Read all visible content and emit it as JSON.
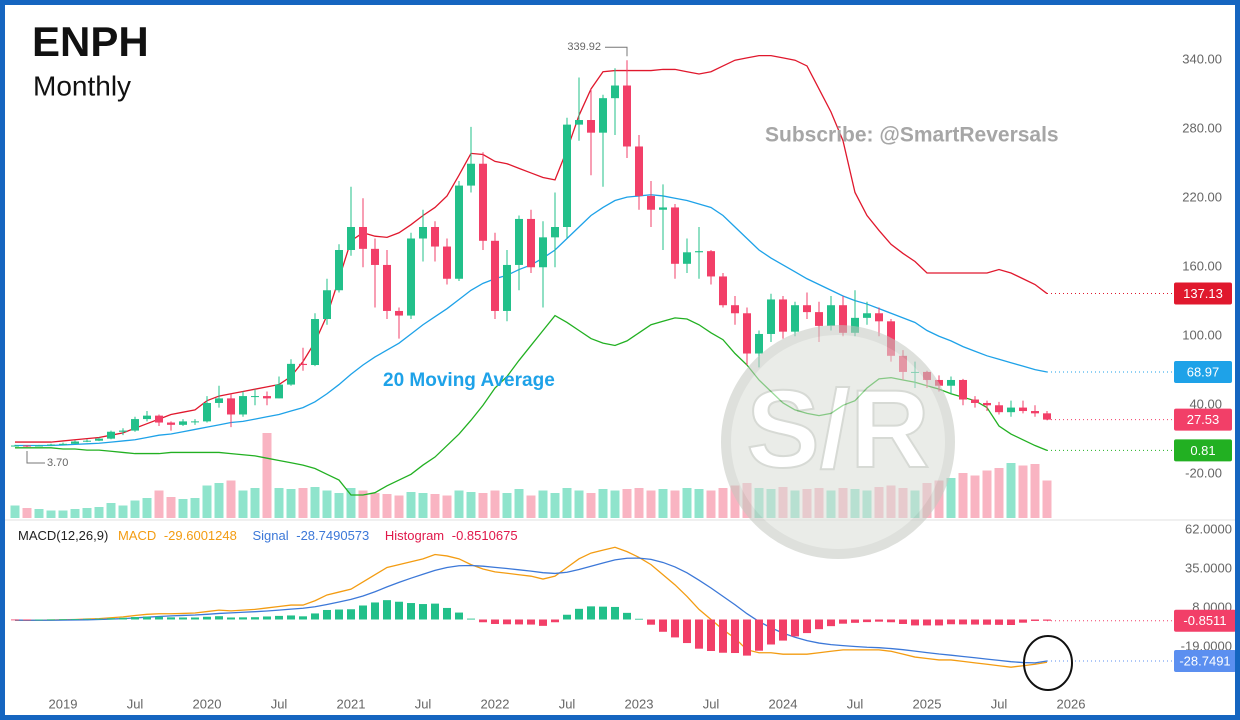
{
  "chart_data": [
    {
      "type": "candlestick",
      "title": "ENPH",
      "subtitle": "Monthly",
      "annotations": [
        "Subscribe: @SmartReversals",
        "20 Moving Average"
      ],
      "watermark": "S/R",
      "low_label": "3.70",
      "x": [
        "2018-09",
        "2018-10",
        "2018-11",
        "2018-12",
        "2019-01",
        "2019-02",
        "2019-03",
        "2019-04",
        "2019-05",
        "2019-06",
        "2019-07",
        "2019-08",
        "2019-09",
        "2019-10",
        "2019-11",
        "2019-12",
        "2020-01",
        "2020-02",
        "2020-03",
        "2020-04",
        "2020-05",
        "2020-06",
        "2020-07",
        "2020-08",
        "2020-09",
        "2020-10",
        "2020-11",
        "2020-12",
        "2021-01",
        "2021-02",
        "2021-03",
        "2021-04",
        "2021-05",
        "2021-06",
        "2021-07",
        "2021-08",
        "2021-09",
        "2021-10",
        "2021-11",
        "2021-12",
        "2022-01",
        "2022-02",
        "2022-03",
        "2022-04",
        "2022-05",
        "2022-06",
        "2022-07",
        "2022-08",
        "2022-09",
        "2022-10",
        "2022-11",
        "2022-12",
        "2023-01",
        "2023-02",
        "2023-03",
        "2023-04",
        "2023-05",
        "2023-06",
        "2023-07",
        "2023-08",
        "2023-09",
        "2023-10",
        "2023-11",
        "2023-12",
        "2024-01",
        "2024-02",
        "2024-03",
        "2024-04",
        "2024-05",
        "2024-06",
        "2024-07",
        "2024-08",
        "2024-09",
        "2024-10",
        "2024-11",
        "2024-12",
        "2025-01",
        "2025-02",
        "2025-03",
        "2025-04",
        "2025-05",
        "2025-06",
        "2025-07",
        "2025-08",
        "2025-09",
        "2025-10",
        "2025-11"
      ],
      "open": [
        4.8,
        5,
        4.5,
        5,
        5.9,
        6.5,
        8.5,
        9.2,
        11,
        17,
        18,
        28,
        31,
        25,
        23,
        26,
        26,
        42,
        46,
        32,
        48,
        48,
        46,
        58,
        76,
        75,
        115,
        140,
        175,
        195,
        176,
        162,
        122,
        118,
        185,
        195,
        178,
        150,
        231,
        250,
        183,
        122,
        162,
        202,
        160,
        186,
        195,
        284,
        288,
        277,
        307,
        318,
        265,
        222,
        210,
        212,
        163,
        173,
        174,
        152,
        127,
        120,
        85,
        102,
        132,
        104,
        127,
        121,
        109,
        127,
        103,
        116,
        120,
        113,
        83,
        69,
        69,
        62,
        57,
        62,
        45,
        42,
        40,
        34,
        38,
        35,
        33
      ],
      "high": [
        5.6,
        5.4,
        5.6,
        6.5,
        7.5,
        9.5,
        10.5,
        12,
        18,
        20,
        30,
        35,
        32,
        26,
        28,
        28,
        48,
        57,
        50,
        52,
        54,
        52,
        65,
        80,
        90,
        120,
        150,
        180,
        230,
        220,
        185,
        175,
        125,
        190,
        210,
        200,
        185,
        235,
        282,
        260,
        190,
        175,
        205,
        210,
        200,
        225,
        290,
        325,
        315,
        310,
        333,
        339.92,
        275,
        235,
        232,
        215,
        185,
        195,
        175,
        155,
        135,
        125,
        105,
        137,
        135,
        130,
        138,
        130,
        135,
        135,
        140,
        130,
        125,
        115,
        88,
        78,
        70,
        66,
        65,
        63,
        48,
        44,
        43,
        44,
        44,
        40,
        35
      ],
      "low": [
        4.2,
        3.7,
        4.3,
        4.8,
        5.5,
        6.2,
        8,
        8.8,
        10.5,
        14,
        17,
        26,
        22,
        18,
        22,
        23,
        25,
        38,
        21,
        30,
        40,
        40,
        46,
        57,
        70,
        74,
        110,
        138,
        170,
        160,
        125,
        115,
        98,
        115,
        165,
        165,
        145,
        148,
        225,
        175,
        115,
        113,
        140,
        155,
        125,
        160,
        185,
        270,
        240,
        230,
        275,
        255,
        210,
        195,
        175,
        150,
        155,
        150,
        145,
        125,
        110,
        75,
        73,
        95,
        98,
        100,
        115,
        95,
        105,
        100,
        100,
        110,
        100,
        78,
        62,
        55,
        55,
        52,
        50,
        40,
        38,
        35,
        32,
        30,
        33,
        30,
        27
      ],
      "close": [
        5,
        4.5,
        5,
        5.9,
        6.5,
        8.5,
        9.2,
        11,
        17,
        18,
        28,
        31,
        25,
        23,
        26,
        26,
        42,
        46,
        32,
        48,
        48,
        46,
        58,
        76,
        75,
        115,
        140,
        175,
        195,
        176,
        162,
        122,
        118,
        185,
        195,
        178,
        150,
        231,
        250,
        183,
        122,
        162,
        202,
        160,
        186,
        195,
        284,
        288,
        277,
        307,
        318,
        265,
        222,
        210,
        212,
        163,
        173,
        174,
        152,
        127,
        120,
        85,
        102,
        132,
        104,
        127,
        121,
        109,
        127,
        103,
        116,
        120,
        113,
        83,
        69,
        69,
        62,
        57,
        62,
        45,
        42,
        40,
        34,
        38,
        35,
        33,
        27.53
      ],
      "up_color": "#22c08a",
      "down_color": "#f23f68",
      "close_badge_color": "#f23f68",
      "volume": {
        "up_color": "#8fe4cc",
        "down_color": "#f9b4c2",
        "values": [
          25,
          20,
          18,
          15,
          15,
          18,
          20,
          22,
          30,
          25,
          35,
          40,
          55,
          42,
          38,
          40,
          65,
          70,
          75,
          55,
          60,
          170,
          60,
          58,
          60,
          62,
          55,
          50,
          60,
          55,
          50,
          48,
          45,
          52,
          50,
          48,
          45,
          55,
          52,
          50,
          55,
          50,
          58,
          45,
          55,
          50,
          60,
          55,
          50,
          58,
          55,
          58,
          60,
          55,
          58,
          55,
          60,
          58,
          55,
          60,
          65,
          70,
          60,
          58,
          62,
          55,
          58,
          60,
          55,
          60,
          58,
          55,
          62,
          65,
          60,
          55,
          70,
          75,
          80,
          90,
          85,
          95,
          100,
          110,
          105,
          108,
          75
        ]
      },
      "bands": [
        {
          "color": "#e0182d",
          "values": [
            8,
            8,
            8,
            8,
            9,
            10,
            11,
            12,
            14,
            16,
            20,
            24,
            28,
            32,
            34,
            36,
            44,
            48,
            50,
            52,
            54,
            56,
            58,
            65,
            78,
            95,
            118,
            150,
            183,
            190,
            187,
            186,
            190,
            197,
            205,
            212,
            222,
            240,
            259,
            258,
            252,
            250,
            246,
            242,
            238,
            236,
            262,
            292,
            315,
            330,
            331,
            331,
            331,
            331,
            332,
            332,
            330,
            328,
            330,
            335,
            340,
            342,
            344,
            344,
            342,
            340,
            335,
            315,
            295,
            270,
            225,
            205,
            192,
            180,
            172,
            165,
            155,
            155,
            155,
            155,
            155,
            155,
            158,
            155,
            150,
            145,
            137.13
          ]
        },
        {
          "color": "#1ea2e8",
          "values": [
            5,
            5,
            5,
            5,
            5.5,
            6,
            6.5,
            7,
            8,
            9,
            10,
            12,
            14,
            15,
            17,
            19,
            21,
            23,
            25,
            26,
            28,
            30,
            32,
            35,
            38,
            43,
            50,
            58,
            67,
            75,
            82,
            88,
            94,
            102,
            110,
            117,
            124,
            132,
            140,
            146,
            150,
            153,
            158,
            162,
            168,
            175,
            185,
            195,
            205,
            212,
            218,
            221,
            222,
            223,
            222,
            220,
            218,
            215,
            212,
            205,
            195,
            185,
            175,
            168,
            162,
            156,
            150,
            145,
            140,
            135,
            131,
            128,
            124,
            120,
            116,
            112,
            105,
            100,
            96,
            91,
            87,
            83,
            80,
            77,
            74,
            71,
            68.97
          ]
        },
        {
          "color": "#22b022",
          "values": [
            3,
            3,
            3,
            3,
            2,
            2,
            1,
            1,
            0,
            -1,
            -2,
            -2,
            -2,
            -1,
            -1,
            -1,
            -1,
            -1,
            -2,
            -3,
            -4,
            -6,
            -8,
            -10,
            -12,
            -15,
            -20,
            -25,
            -38,
            -38,
            -36,
            -30,
            -25,
            -20,
            -12,
            -5,
            5,
            15,
            27,
            40,
            55,
            65,
            79,
            92,
            105,
            118,
            112,
            105,
            98,
            94,
            92,
            96,
            103,
            110,
            113,
            116,
            115,
            110,
            103,
            97,
            85,
            75,
            62,
            52,
            42,
            36,
            33,
            31,
            33,
            40,
            44,
            55,
            63,
            64,
            62,
            60,
            57,
            54,
            50,
            47,
            44,
            38,
            22,
            15,
            10,
            5,
            0.81
          ]
        }
      ],
      "ylim": [
        -58,
        388
      ],
      "yticks": [
        {
          "value": 340,
          "label": "340.00"
        },
        {
          "value": 280,
          "label": "280.00"
        },
        {
          "value": 220,
          "label": "220.00"
        },
        {
          "value": 160,
          "label": "160.00"
        },
        {
          "value": 100,
          "label": "100.00"
        },
        {
          "value": 40,
          "label": "40.00"
        },
        {
          "value": -20,
          "label": "-20.00"
        }
      ],
      "xticks": [
        {
          "value": "2019-01",
          "label": "2019"
        },
        {
          "value": "2019-07",
          "label": "Jul"
        },
        {
          "value": "2020-01",
          "label": "2020"
        },
        {
          "value": "2020-07",
          "label": "Jul"
        },
        {
          "value": "2021-01",
          "label": "2021"
        },
        {
          "value": "2021-07",
          "label": "Jul"
        },
        {
          "value": "2022-01",
          "label": "2022"
        },
        {
          "value": "2022-07",
          "label": "Jul"
        },
        {
          "value": "2023-01",
          "label": "2023"
        },
        {
          "value": "2023-07",
          "label": "Jul"
        },
        {
          "value": "2024-01",
          "label": "2024"
        },
        {
          "value": "2024-07",
          "label": "Jul"
        },
        {
          "value": "2025-01",
          "label": "2025"
        },
        {
          "value": "2025-07",
          "label": "Jul"
        },
        {
          "value": "2026-01",
          "label": "2026"
        }
      ],
      "grid": false
    },
    {
      "type": "macd",
      "title": "MACD(12,26,9)",
      "series": [
        {
          "name": "MACD",
          "color": "#f39c12",
          "values": [
            -0.5,
            -0.6,
            -0.5,
            -0.4,
            -0.2,
            0,
            0.3,
            0.6,
            1.2,
            1.8,
            2.8,
            3.6,
            4,
            4,
            4.2,
            4.5,
            5.5,
            6.5,
            6,
            6.5,
            7,
            8,
            9,
            10,
            10,
            13,
            17,
            19,
            21,
            26,
            31,
            36,
            38,
            40,
            42,
            45,
            44,
            42,
            38,
            35,
            33,
            32,
            31,
            30,
            28,
            30,
            36,
            42,
            46,
            48,
            50,
            47,
            43,
            38,
            31,
            24,
            16,
            7,
            0,
            -7,
            -13,
            -21,
            -23,
            -23,
            -24,
            -24,
            -24,
            -23,
            -22,
            -21,
            -21,
            -21,
            -21,
            -22,
            -24,
            -26,
            -27,
            -28,
            -28,
            -29,
            -30,
            -31,
            -32,
            -33,
            -32,
            -31,
            -29.6001248
          ]
        },
        {
          "name": "Signal",
          "color": "#3c78d8",
          "last_label": "-28.7491",
          "badge_color": "#5b8ff0",
          "values": [
            -0.4,
            -0.5,
            -0.5,
            -0.5,
            -0.4,
            -0.3,
            -0.2,
            0,
            0.3,
            0.6,
            1.1,
            1.6,
            2.1,
            2.5,
            2.8,
            3.1,
            3.6,
            4.2,
            4.6,
            5,
            5.4,
            5.9,
            6.5,
            7.2,
            7.8,
            8.8,
            10.4,
            12.1,
            13.9,
            16.3,
            19.2,
            22.6,
            25.7,
            28.6,
            31.3,
            34,
            36,
            37.2,
            37.4,
            36.9,
            36.1,
            35.3,
            34.4,
            33.5,
            32.4,
            31.9,
            32.7,
            34.6,
            36.9,
            39.1,
            41.3,
            42.4,
            42.5,
            41.6,
            39.5,
            36.4,
            32.3,
            27.2,
            21.8,
            16,
            10.2,
            4,
            -1.4,
            -5.7,
            -9.4,
            -12.3,
            -14.6,
            -16.3,
            -17.4,
            -18.1,
            -18.7,
            -19.2,
            -19.5,
            -20.1,
            -20.9,
            -21.9,
            -22.9,
            -23.9,
            -24.7,
            -25.6,
            -26.5,
            -27.4,
            -28.3,
            -29.2,
            -29.8,
            -30,
            -28.7490573
          ]
        },
        {
          "name": "Histogram",
          "color": "#e0184a",
          "up_color": "#22c08a",
          "down_color": "#f23f68",
          "last_label": "-0.8511",
          "badge_color": "#f23f68",
          "values": [
            -0.1,
            -0.1,
            0,
            0.1,
            0.2,
            0.3,
            0.5,
            0.6,
            0.9,
            1.2,
            1.7,
            2,
            1.9,
            1.5,
            1.4,
            1.4,
            1.9,
            2.3,
            1.4,
            1.5,
            1.6,
            2.1,
            2.5,
            2.8,
            2.2,
            4.2,
            6.6,
            6.9,
            7.1,
            9.7,
            11.8,
            13.4,
            12.3,
            11.4,
            10.7,
            11,
            8,
            4.8,
            0.6,
            -1.9,
            -3.1,
            -3.3,
            -3.4,
            -3.5,
            -4.4,
            -1.9,
            3.3,
            7.4,
            9.1,
            8.9,
            8.7,
            4.6,
            0.5,
            -3.6,
            -8.5,
            -12.4,
            -16.3,
            -20.2,
            -21.8,
            -23,
            -23.2,
            -25,
            -21.6,
            -17.3,
            -14.6,
            -11.7,
            -9.4,
            -6.7,
            -4.6,
            -2.9,
            -2.3,
            -1.8,
            -1.5,
            -1.9,
            -3.1,
            -4.1,
            -4.1,
            -4.1,
            -3.3,
            -3.4,
            -3.5,
            -3.6,
            -3.7,
            -3.8,
            -2.2,
            -1,
            -0.8510675
          ]
        }
      ],
      "ylim": [
        -48.8,
        67.5
      ],
      "yticks": [
        {
          "value": 62,
          "label": "62.0000"
        },
        {
          "value": 35,
          "label": "35.0000"
        },
        {
          "value": 8,
          "label": "8.0000"
        },
        {
          "value": -19,
          "label": "-19.0000"
        }
      ],
      "grid": false
    }
  ]
}
